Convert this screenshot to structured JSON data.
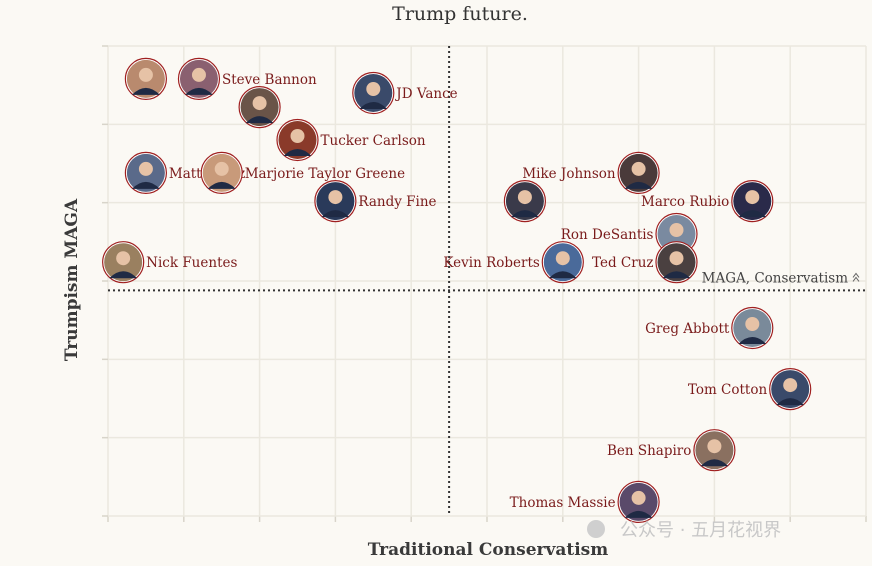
{
  "chart_data": {
    "type": "scatter",
    "title": "Trump future.",
    "xlabel": "Traditional Conservatism",
    "ylabel": "Trumpism MAGA",
    "xlim": [
      0,
      10
    ],
    "ylim": [
      0,
      10
    ],
    "grid": true,
    "reference_lines": {
      "x": 4.5,
      "y": 4.8,
      "label": "MAGA, Conservatism"
    },
    "points": [
      {
        "name": "",
        "x": 0.5,
        "y": 9.3,
        "photo_color": "#b98a6e"
      },
      {
        "name": "Steve Bannon",
        "x": 1.2,
        "y": 9.3,
        "photo_color": "#8a6070"
      },
      {
        "name": "JD Vance",
        "x": 3.5,
        "y": 9.0,
        "photo_color": "#3a4a6a"
      },
      {
        "name": "",
        "x": 2.0,
        "y": 8.7,
        "photo_color": "#6a5448"
      },
      {
        "name": "Tucker Carlson",
        "x": 2.5,
        "y": 8.0,
        "photo_color": "#8a3a2a"
      },
      {
        "name": "Matt Gaetz",
        "x": 0.5,
        "y": 7.3,
        "photo_color": "#5a6a8a"
      },
      {
        "name": "Marjorie Taylor Greene",
        "x": 1.5,
        "y": 7.3,
        "photo_color": "#c89a7a"
      },
      {
        "name": "Randy Fine",
        "x": 3.0,
        "y": 6.7,
        "photo_color": "#2a3a5a"
      },
      {
        "name": "Nick Fuentes",
        "x": 0.2,
        "y": 5.4,
        "photo_color": "#9a8060"
      },
      {
        "name": "Mike Johnson",
        "x": 7.0,
        "y": 7.3,
        "photo_color": "#4a3a3a"
      },
      {
        "name": "",
        "x": 5.5,
        "y": 6.7,
        "photo_color": "#3a3a4a"
      },
      {
        "name": "Marco Rubio",
        "x": 8.5,
        "y": 6.7,
        "photo_color": "#2a2a4a"
      },
      {
        "name": "Ron DeSantis",
        "x": 7.5,
        "y": 6.0,
        "photo_color": "#7a8aa0"
      },
      {
        "name": "Kevin Roberts",
        "x": 6.0,
        "y": 5.4,
        "photo_color": "#4a6a9a"
      },
      {
        "name": "Ted Cruz",
        "x": 7.5,
        "y": 5.4,
        "photo_color": "#4a4040"
      },
      {
        "name": "Greg Abbott",
        "x": 8.5,
        "y": 4.0,
        "photo_color": "#7a8a9a"
      },
      {
        "name": "Tom Cotton",
        "x": 9.0,
        "y": 2.7,
        "photo_color": "#3a4a6a"
      },
      {
        "name": "Ben Shapiro",
        "x": 8.0,
        "y": 1.4,
        "photo_color": "#8a7060"
      },
      {
        "name": "Thomas Massie",
        "x": 7.0,
        "y": 0.3,
        "photo_color": "#5a4a6a"
      }
    ]
  },
  "watermark": "公众号 · 五月花视界",
  "colors": {
    "background": "#fbf9f4",
    "grid": "#ebe8df",
    "label": "#7a1b1b",
    "ring": "#a02020"
  }
}
